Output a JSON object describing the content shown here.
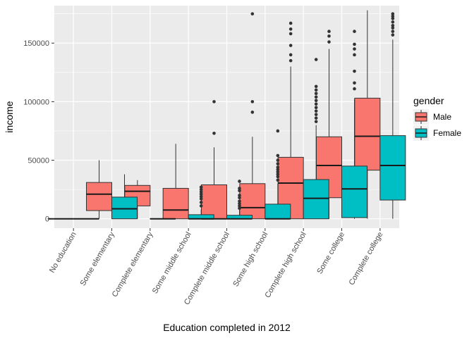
{
  "chart_data": {
    "type": "box",
    "xlabel": "Education completed in 2012",
    "ylabel": "income",
    "ylim": [
      -8000,
      182000
    ],
    "yticks": [
      0,
      50000,
      100000,
      150000
    ],
    "ytick_labels": [
      "0",
      "50000",
      "100000",
      "150000"
    ],
    "grid": true,
    "legend_position": "right",
    "legend": {
      "title": "gender",
      "entries": [
        {
          "name": "Male",
          "color": "#f8766d"
        },
        {
          "name": "Female",
          "color": "#00bfc4"
        }
      ]
    },
    "categories": [
      "No education",
      "Some elementary",
      "Complete elementary",
      "Some middle school",
      "Complete middle school",
      "Some high school",
      "Complete high school",
      "Some college",
      "Complete college"
    ],
    "series": [
      {
        "name": "Male",
        "color": "#f8766d",
        "boxes": [
          {
            "min": 0,
            "q1": 0,
            "median": 0,
            "q3": 0,
            "max": 0,
            "outliers": []
          },
          {
            "min": 0,
            "q1": 7000,
            "median": 21000,
            "q3": 31000,
            "max": 50000,
            "outliers": []
          },
          {
            "min": 0,
            "q1": 11000,
            "median": 23500,
            "q3": 28500,
            "max": 33000,
            "outliers": []
          },
          {
            "min": 0,
            "q1": 0,
            "median": 7500,
            "q3": 26000,
            "max": 64000,
            "outliers": []
          },
          {
            "min": 0,
            "q1": 0,
            "median": 0,
            "q3": 29000,
            "max": 61000,
            "outliers": [
              73000,
              100000
            ]
          },
          {
            "min": 0,
            "q1": 0,
            "median": 9500,
            "q3": 30000,
            "max": 70000,
            "outliers": [
              91000,
              100000,
              175000
            ]
          },
          {
            "min": 0,
            "q1": 0,
            "median": 30500,
            "q3": 52500,
            "max": 130000,
            "outliers": [
              135000,
              140000,
              148000,
              158000,
              162000,
              167000
            ]
          },
          {
            "min": 0,
            "q1": 18000,
            "median": 45500,
            "q3": 70000,
            "max": 145000,
            "outliers": [
              151000,
              156000,
              160000
            ]
          },
          {
            "min": 0,
            "q1": 41500,
            "median": 70500,
            "q3": 103000,
            "max": 178000,
            "outliers": []
          }
        ]
      },
      {
        "name": "Female",
        "color": "#00bfc4",
        "boxes": [
          {
            "min": 0,
            "q1": 0,
            "median": 0,
            "q3": 0,
            "max": 0,
            "outliers": []
          },
          {
            "min": 0,
            "q1": 0,
            "median": 8500,
            "q3": 18500,
            "max": 38000,
            "outliers": []
          },
          {
            "min": 0,
            "q1": 0,
            "median": 0,
            "q3": 0,
            "max": 0,
            "outliers": []
          },
          {
            "min": 0,
            "q1": 0,
            "median": 0,
            "q3": 3500,
            "max": 8000,
            "outliers": [
              11000,
              14000,
              17000,
              19000,
              21000,
              23000,
              25000,
              27000
            ]
          },
          {
            "min": 0,
            "q1": 0,
            "median": 0,
            "q3": 3000,
            "max": 7500,
            "outliers": [
              9000,
              11000,
              13000,
              15000,
              18000,
              20000,
              24000,
              26000,
              32000
            ]
          },
          {
            "min": 0,
            "q1": 0,
            "median": 0,
            "q3": 12500,
            "max": 30000,
            "outliers": [
              33000,
              36000,
              38000,
              40000,
              42000,
              44000,
              47000,
              50000,
              54000,
              75000
            ]
          },
          {
            "min": 0,
            "q1": 0,
            "median": 17500,
            "q3": 33500,
            "max": 80000,
            "outliers": [
              83000,
              86000,
              89000,
              92000,
              95000,
              98000,
              101000,
              104000,
              107000,
              110000,
              113000,
              136000
            ]
          },
          {
            "min": 0,
            "q1": 1000,
            "median": 25500,
            "q3": 45000,
            "max": 102000,
            "outliers": [
              111000,
              116000,
              126000,
              140000,
              145000,
              149000,
              160000
            ]
          },
          {
            "min": 0,
            "q1": 16000,
            "median": 45500,
            "q3": 71000,
            "max": 153000,
            "outliers": [
              157000,
              160000,
              163000,
              165000,
              168000,
              171000,
              173000,
              175000
            ]
          }
        ]
      }
    ]
  }
}
